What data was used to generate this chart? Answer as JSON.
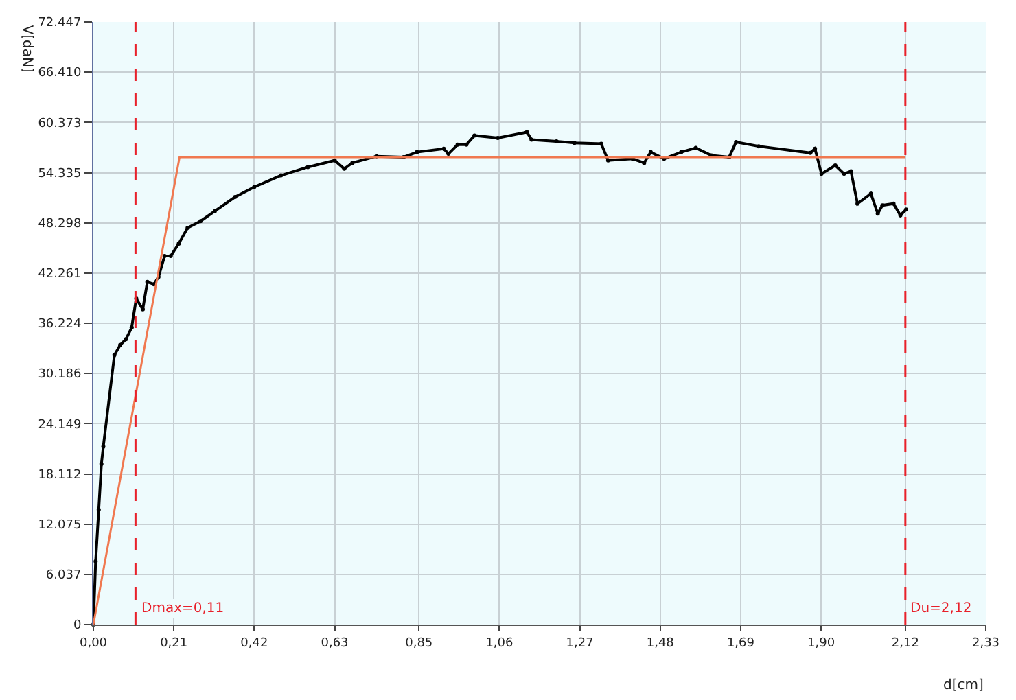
{
  "chart_data": {
    "type": "line",
    "xlabel": "d[cm]",
    "ylabel": "V[daN]",
    "series": [
      {
        "color": "#000000",
        "x": [
          0,
          0.006,
          0.014,
          0.021,
          0.026,
          0.055,
          0.07,
          0.085,
          0.1,
          0.112,
          0.129,
          0.141,
          0.158,
          0.17,
          0.186,
          0.202,
          0.223,
          0.246,
          0.28,
          0.317,
          0.37,
          0.42,
          0.49,
          0.56,
          0.63,
          0.655,
          0.676,
          0.739,
          0.81,
          0.845,
          0.915,
          0.927,
          0.951,
          0.974,
          0.995,
          1.056,
          1.132,
          1.144,
          1.209,
          1.256,
          1.326,
          1.344,
          1.408,
          1.438,
          1.455,
          1.49,
          1.535,
          1.573,
          1.614,
          1.66,
          1.678,
          1.737,
          1.872,
          1.884,
          1.901,
          1.937,
          1.96,
          1.978,
          1.995,
          2.03,
          2.048,
          2.06,
          2.089,
          2.107,
          2.122
        ],
        "values": [
          0,
          7600,
          13800,
          19300,
          21400,
          32400,
          33600,
          34300,
          35700,
          39200,
          37900,
          41200,
          40900,
          41800,
          44300,
          44300,
          45800,
          47700,
          48500,
          49700,
          51400,
          52600,
          54000,
          55000,
          55800,
          54800,
          55500,
          56300,
          56200,
          56800,
          57200,
          56600,
          57700,
          57700,
          58800,
          58500,
          59200,
          58300,
          58100,
          57900,
          57800,
          55800,
          56000,
          55500,
          56800,
          56000,
          56800,
          57300,
          56400,
          56200,
          58000,
          57500,
          56700,
          57200,
          54200,
          55200,
          54200,
          54500,
          50600,
          51800,
          49400,
          50400,
          50600,
          49200,
          49900
        ]
      },
      {
        "color": "#f07850",
        "marker": "none",
        "x": [
          0,
          0.225,
          2.12
        ],
        "values": [
          0,
          56200,
          56200
        ]
      }
    ],
    "marker": "circle",
    "grid": true,
    "xlim": [
      0,
      2.33
    ],
    "ylim": [
      0,
      72447
    ],
    "xticks": [
      {
        "value": 0,
        "label": "0,00"
      },
      {
        "value": 0.21,
        "label": "0,21"
      },
      {
        "value": 0.42,
        "label": "0,42"
      },
      {
        "value": 0.63,
        "label": "0,63"
      },
      {
        "value": 0.85,
        "label": "0,85"
      },
      {
        "value": 1.06,
        "label": "1,06"
      },
      {
        "value": 1.27,
        "label": "1,27"
      },
      {
        "value": 1.48,
        "label": "1,48"
      },
      {
        "value": 1.69,
        "label": "1,69"
      },
      {
        "value": 1.9,
        "label": "1,90"
      },
      {
        "value": 2.12,
        "label": "2,12"
      },
      {
        "value": 2.33,
        "label": "2,33"
      }
    ],
    "yticks": [
      0,
      {
        "value": 6037,
        "label": "6.037"
      },
      {
        "value": 12075,
        "label": "12.075"
      },
      {
        "value": 18112,
        "label": "18.112"
      },
      {
        "value": 24149,
        "label": "24.149"
      },
      {
        "value": 30186,
        "label": "30.186"
      },
      {
        "value": 36224,
        "label": "36.224"
      },
      {
        "value": 42261,
        "label": "42.261"
      },
      {
        "value": 48298,
        "label": "48.298"
      },
      {
        "value": 54335,
        "label": "54.335"
      },
      {
        "value": 60373,
        "label": "60.373"
      },
      {
        "value": 66410,
        "label": "66.410"
      },
      {
        "value": 72447,
        "label": "72.447"
      }
    ],
    "ref_lines": [
      {
        "axis": "x",
        "value": 0.11,
        "label": "Dmax=0,11",
        "color": "#e8202a",
        "line_style": "dashed"
      },
      {
        "axis": "x",
        "value": 2.12,
        "label": "Du=2,12",
        "color": "#e8202a",
        "line_style": "dashed"
      }
    ]
  }
}
